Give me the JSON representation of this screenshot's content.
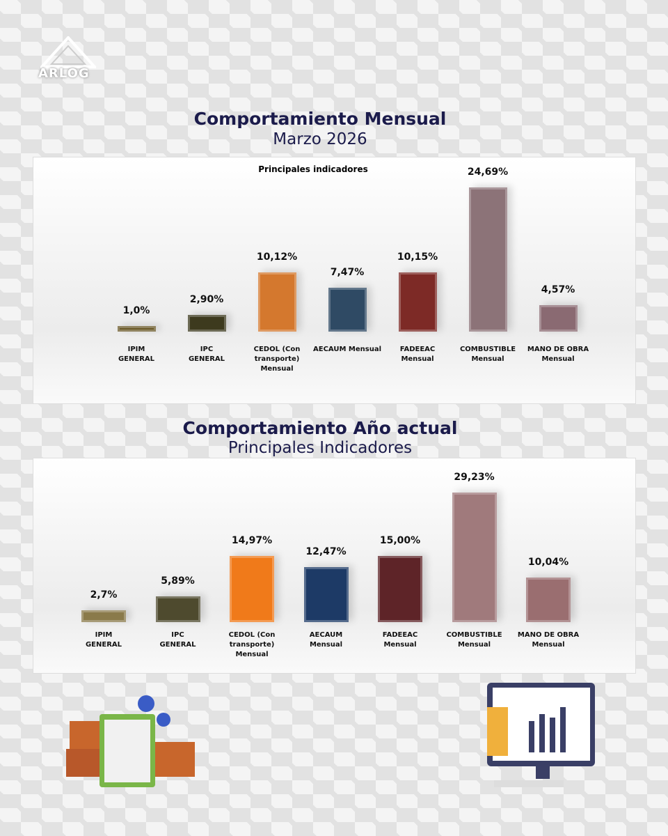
{
  "logo": "ARLOG",
  "chart_data": [
    {
      "type": "bar",
      "title": "Comportamiento Mensual",
      "subtitle": "Marzo 2026",
      "inner_title": "Principales indicadores",
      "categories": [
        "IPIM\nGENERAL",
        "IPC\nGENERAL",
        "CEDOL (Con\ntransporte)\nMensual",
        "AECAUM Mensual",
        "FADEEAC\nMensual",
        "COMBUSTIBLE\nMensual",
        "MANO DE OBRA\nMensual"
      ],
      "values": [
        1.0,
        2.9,
        10.12,
        7.47,
        10.15,
        24.69,
        4.57
      ],
      "value_labels": [
        "1,0%",
        "2,90%",
        "10,12%",
        "7,47%",
        "10,15%",
        "24,69%",
        "4,57%"
      ],
      "colors": [
        "#6b5a2a",
        "#3d3a1e",
        "#d4782e",
        "#2f4a64",
        "#7d2a26",
        "#8c7378",
        "#8a6a72"
      ]
    },
    {
      "type": "bar",
      "title": "Comportamiento Año actual",
      "subtitle": "Principales Indicadores",
      "categories": [
        "IPIM\nGENERAL",
        "IPC\nGENERAL",
        "CEDOL (Con\ntransporte)\nMensual",
        "AECAUM\nMensual",
        "FADEEAC\nMensual",
        "COMBUSTIBLE\nMensual",
        "MANO DE OBRA\nMensual"
      ],
      "values": [
        2.7,
        5.89,
        14.97,
        12.47,
        15.0,
        29.23,
        10.04
      ],
      "value_labels": [
        "2,7%",
        "5,89%",
        "14,97%",
        "12,47%",
        "15,00%",
        "29,23%",
        "10,04%"
      ],
      "colors": [
        "#8a7a4a",
        "#4e4a2e",
        "#f07a1a",
        "#1d3a66",
        "#5e2428",
        "#a07a7c",
        "#9a6e70"
      ]
    }
  ]
}
